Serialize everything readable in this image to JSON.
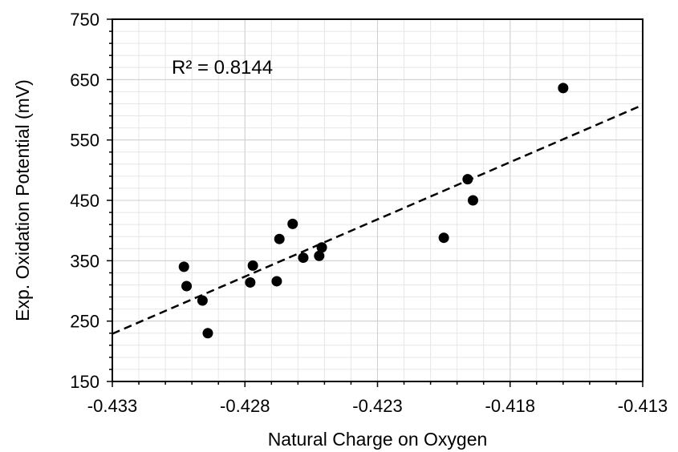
{
  "chart_data": {
    "type": "scatter",
    "title": "",
    "xlabel": "Natural Charge on Oxygen",
    "ylabel": "Exp. Oxidation Potential (mV)",
    "xlim": [
      -0.433,
      -0.413
    ],
    "ylim": [
      150,
      750
    ],
    "x_ticks": [
      -0.433,
      -0.428,
      -0.423,
      -0.418,
      -0.413
    ],
    "x_tick_labels": [
      "-0.433",
      "-0.428",
      "-0.423",
      "-0.418",
      "-0.413"
    ],
    "y_ticks": [
      150,
      250,
      350,
      450,
      550,
      650,
      750
    ],
    "y_tick_labels": [
      "150",
      "250",
      "350",
      "450",
      "550",
      "650",
      "750"
    ],
    "grid": true,
    "annotation": "R² = 0.8144",
    "points": [
      {
        "x": -0.4303,
        "y": 340
      },
      {
        "x": -0.4302,
        "y": 308
      },
      {
        "x": -0.4296,
        "y": 284
      },
      {
        "x": -0.4294,
        "y": 230
      },
      {
        "x": -0.4278,
        "y": 314
      },
      {
        "x": -0.4277,
        "y": 342
      },
      {
        "x": -0.4268,
        "y": 316
      },
      {
        "x": -0.4267,
        "y": 386
      },
      {
        "x": -0.4262,
        "y": 411
      },
      {
        "x": -0.4258,
        "y": 355
      },
      {
        "x": -0.4252,
        "y": 358
      },
      {
        "x": -0.4251,
        "y": 372
      },
      {
        "x": -0.4205,
        "y": 388
      },
      {
        "x": -0.4196,
        "y": 485
      },
      {
        "x": -0.4194,
        "y": 450
      },
      {
        "x": -0.416,
        "y": 636
      }
    ],
    "trendline": {
      "style": "dashed",
      "x": [
        -0.433,
        -0.413
      ],
      "y": [
        229,
        608
      ]
    }
  }
}
